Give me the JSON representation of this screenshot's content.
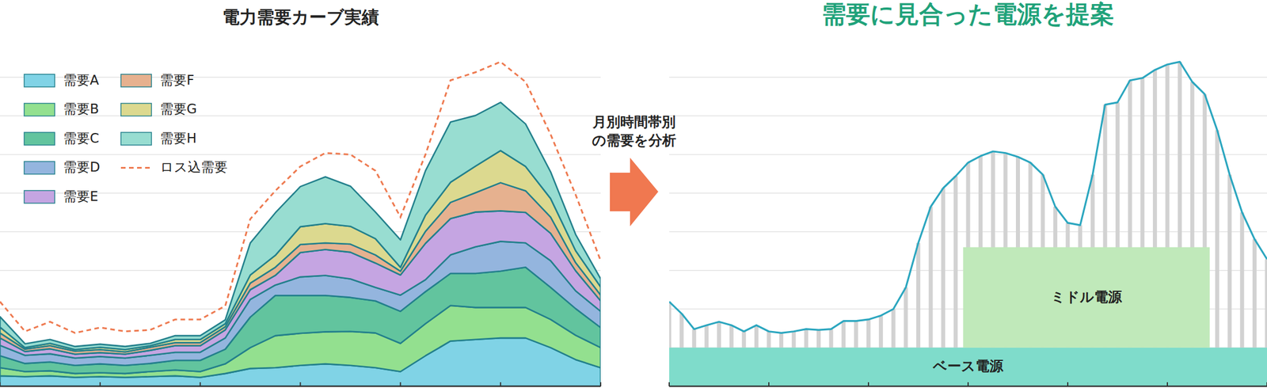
{
  "chart_data": [
    {
      "type": "area",
      "title": "電力需要カーブ実績",
      "stacked": true,
      "grid": true,
      "tick_labels": false,
      "legend": "top-left",
      "x": [
        0,
        1,
        2,
        3,
        4,
        5,
        6,
        7,
        8,
        9,
        10,
        11,
        12,
        13,
        14,
        15,
        16,
        17,
        18,
        19,
        20,
        21,
        22,
        23,
        24
      ],
      "xlim": [
        0,
        24
      ],
      "xticks": [
        0,
        4,
        8,
        12,
        16,
        20,
        24
      ],
      "ylim": [
        0,
        10
      ],
      "yticks": [
        0,
        1,
        2,
        3,
        4,
        5,
        6,
        7,
        8
      ],
      "series": [
        {
          "name": "需要A",
          "color": "#80d3e6",
          "values": [
            0.27,
            0.25,
            0.27,
            0.23,
            0.25,
            0.23,
            0.25,
            0.27,
            0.23,
            0.33,
            0.46,
            0.48,
            0.54,
            0.58,
            0.54,
            0.48,
            0.38,
            0.79,
            1.17,
            1.21,
            1.25,
            1.25,
            1.0,
            0.69,
            0.48
          ]
        },
        {
          "name": "需要B",
          "color": "#93e08f",
          "values": [
            0.21,
            0.13,
            0.13,
            0.1,
            0.1,
            0.1,
            0.13,
            0.15,
            0.15,
            0.25,
            0.54,
            0.83,
            0.83,
            0.83,
            0.88,
            0.9,
            0.73,
            0.83,
            0.92,
            0.83,
            0.79,
            0.79,
            0.73,
            0.63,
            0.52
          ]
        },
        {
          "name": "需要C",
          "color": "#62c49e",
          "values": [
            0.31,
            0.21,
            0.23,
            0.21,
            0.23,
            0.21,
            0.21,
            0.25,
            0.29,
            0.38,
            0.79,
            1.04,
            0.98,
            0.94,
            0.88,
            0.83,
            0.83,
            0.83,
            0.83,
            0.88,
            0.94,
            1.04,
            0.83,
            0.69,
            0.52
          ]
        },
        {
          "name": "需要D",
          "color": "#94b5de",
          "values": [
            0.27,
            0.21,
            0.21,
            0.19,
            0.19,
            0.19,
            0.21,
            0.21,
            0.21,
            0.29,
            0.46,
            0.27,
            0.48,
            0.52,
            0.48,
            0.35,
            0.42,
            0.31,
            0.48,
            0.69,
            0.77,
            0.63,
            0.69,
            0.46,
            0.42
          ]
        },
        {
          "name": "需要E",
          "color": "#c5a5e2",
          "values": [
            0.19,
            0.1,
            0.13,
            0.1,
            0.1,
            0.1,
            0.13,
            0.17,
            0.17,
            0.21,
            0.25,
            0.25,
            0.63,
            0.67,
            0.69,
            0.63,
            0.52,
            0.94,
            0.94,
            0.9,
            0.79,
            0.79,
            0.71,
            0.52,
            0.27
          ]
        },
        {
          "name": "需要F",
          "color": "#e6b18f",
          "values": [
            0.13,
            0.06,
            0.08,
            0.08,
            0.08,
            0.06,
            0.08,
            0.08,
            0.08,
            0.08,
            0.17,
            0.21,
            0.21,
            0.17,
            0.21,
            0.21,
            0.1,
            0.31,
            0.42,
            0.5,
            0.73,
            0.56,
            0.42,
            0.21,
            0.15
          ]
        },
        {
          "name": "需要G",
          "color": "#dcd98f",
          "values": [
            0.15,
            0.04,
            0.06,
            0.04,
            0.06,
            0.06,
            0.04,
            0.08,
            0.08,
            0.08,
            0.21,
            0.31,
            0.46,
            0.5,
            0.46,
            0.42,
            0.1,
            0.42,
            0.52,
            0.69,
            0.83,
            0.63,
            0.48,
            0.31,
            0.21
          ]
        },
        {
          "name": "需要H",
          "color": "#98ddd1",
          "values": [
            0.27,
            0.1,
            0.1,
            0.08,
            0.08,
            0.08,
            0.06,
            0.1,
            0.1,
            0.1,
            0.83,
            1.1,
            1.04,
            1.21,
            1.04,
            0.69,
            0.71,
            1.15,
            1.56,
            1.31,
            1.25,
            1.1,
            0.69,
            0.42,
            0.21
          ]
        },
        {
          "name": "ロス込需要",
          "type": "line",
          "line_style": "dashed",
          "color": "#ee7a50",
          "values": [
            2.19,
            1.42,
            1.67,
            1.38,
            1.52,
            1.42,
            1.46,
            1.73,
            1.73,
            2.08,
            4.33,
            5.06,
            5.69,
            6.04,
            6.0,
            5.58,
            4.38,
            6.0,
            7.92,
            8.13,
            8.4,
            7.88,
            6.52,
            4.96,
            3.25
          ]
        }
      ]
    },
    {
      "type": "line",
      "title": "需要に見合った電源を提案",
      "grid": true,
      "tick_labels": false,
      "color": "#1fa27a",
      "x": [
        0,
        0.5,
        1,
        1.5,
        2,
        2.5,
        3,
        3.5,
        4,
        4.5,
        5,
        5.5,
        6,
        6.5,
        7,
        7.5,
        8,
        8.5,
        9,
        9.5,
        10,
        10.5,
        11,
        11.5,
        12,
        12.5,
        13,
        13.5,
        14,
        14.5,
        15,
        15.5,
        16,
        16.5,
        17,
        17.5,
        18,
        18.5,
        19,
        19.5,
        20,
        20.5,
        21,
        21.5,
        22,
        22.5,
        23,
        23.5,
        24
      ],
      "xlim": [
        0,
        24
      ],
      "xticks": [
        0,
        4,
        8,
        12,
        16,
        20,
        24
      ],
      "ylim": [
        0,
        10
      ],
      "yticks": [
        0,
        1,
        2,
        3,
        4,
        5,
        6,
        7,
        8
      ],
      "series": [
        {
          "color": "#2ba6bf",
          "values": [
            2.19,
            1.88,
            1.48,
            1.58,
            1.67,
            1.58,
            1.42,
            1.58,
            1.42,
            1.38,
            1.42,
            1.48,
            1.46,
            1.48,
            1.69,
            1.69,
            1.73,
            1.83,
            2.0,
            2.56,
            3.71,
            4.65,
            5.13,
            5.44,
            5.79,
            5.96,
            6.08,
            6.04,
            5.94,
            5.79,
            5.48,
            4.65,
            4.23,
            4.17,
            5.48,
            7.29,
            7.35,
            7.92,
            7.98,
            8.19,
            8.33,
            8.4,
            7.88,
            7.56,
            6.63,
            5.48,
            4.5,
            3.81,
            3.29
          ]
        }
      ],
      "bands": [
        {
          "label": "ベース電源",
          "color": "#7fdccb",
          "x_range": [
            0,
            24
          ],
          "y_range": [
            0,
            1
          ]
        },
        {
          "label": "ミドル電源",
          "color": "#c0e9ba",
          "x_range": [
            11.8,
            21.7
          ],
          "y_range": [
            1,
            3.6
          ]
        }
      ]
    }
  ],
  "arrow_label": [
    "月別時間帯別",
    "の需要を分析"
  ]
}
